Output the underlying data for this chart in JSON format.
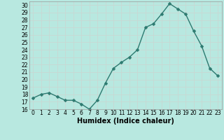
{
  "x": [
    0,
    1,
    2,
    3,
    4,
    5,
    6,
    7,
    8,
    9,
    10,
    11,
    12,
    13,
    14,
    15,
    16,
    17,
    18,
    19,
    20,
    21,
    22,
    23
  ],
  "y": [
    17.5,
    18.0,
    18.2,
    17.7,
    17.2,
    17.2,
    16.7,
    16.0,
    17.2,
    19.5,
    21.5,
    22.3,
    23.0,
    24.0,
    27.0,
    27.5,
    28.8,
    30.2,
    29.5,
    28.8,
    26.5,
    24.5,
    21.5,
    20.5
  ],
  "line_color": "#2d7a70",
  "marker": "D",
  "marker_size": 2.5,
  "bg_color": "#b8e8e0",
  "grid_color": "#c8d8d4",
  "xlabel": "Humidex (Indice chaleur)",
  "xlim": [
    -0.5,
    23.5
  ],
  "ylim": [
    16,
    30.5
  ],
  "yticks": [
    16,
    17,
    18,
    19,
    20,
    21,
    22,
    23,
    24,
    25,
    26,
    27,
    28,
    29,
    30
  ],
  "xticks": [
    0,
    1,
    2,
    3,
    4,
    5,
    6,
    7,
    8,
    9,
    10,
    11,
    12,
    13,
    14,
    15,
    16,
    17,
    18,
    19,
    20,
    21,
    22,
    23
  ],
  "tick_fontsize": 5.5,
  "label_fontsize": 7,
  "line_width": 1.0
}
